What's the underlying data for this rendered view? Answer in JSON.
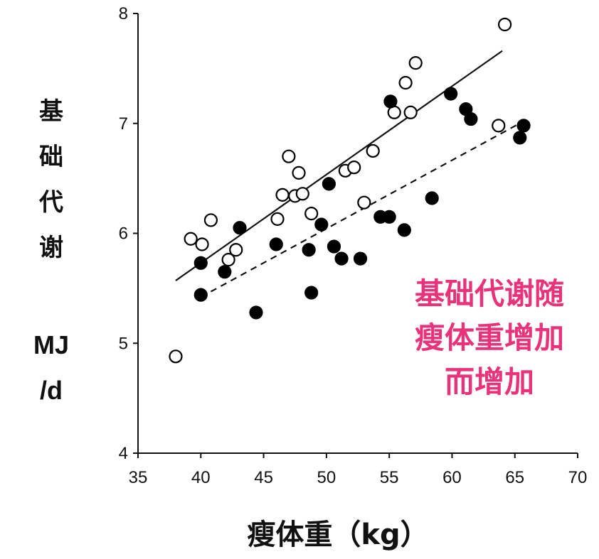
{
  "chart_data": {
    "type": "scatter",
    "title": "",
    "xlabel": "瘦体重（kg）",
    "ylabel_chars": [
      "基",
      "础",
      "代",
      "谢"
    ],
    "yunit_lines": [
      "MJ",
      "/d"
    ],
    "xlim": [
      35,
      70
    ],
    "ylim": [
      4,
      8
    ],
    "x_ticks": [
      "35",
      "40",
      "45",
      "50",
      "55",
      "60",
      "65",
      "70"
    ],
    "y_ticks": [
      "4",
      "5",
      "6",
      "7",
      "8"
    ],
    "grid": false,
    "annotation_lines": [
      "基础代谢随",
      "瘦体重增加",
      "而增加"
    ],
    "annotation_color": "#e8327a",
    "series": [
      {
        "marker": "open-circle",
        "points": [
          [
            38.0,
            4.88
          ],
          [
            39.2,
            5.95
          ],
          [
            40.1,
            5.9
          ],
          [
            40.8,
            6.12
          ],
          [
            42.2,
            5.76
          ],
          [
            42.8,
            5.85
          ],
          [
            46.1,
            6.13
          ],
          [
            46.5,
            6.35
          ],
          [
            47.0,
            6.7
          ],
          [
            47.5,
            6.34
          ],
          [
            47.8,
            6.55
          ],
          [
            48.1,
            6.36
          ],
          [
            48.8,
            6.18
          ],
          [
            51.5,
            6.57
          ],
          [
            52.2,
            6.6
          ],
          [
            53.0,
            6.28
          ],
          [
            53.7,
            6.75
          ],
          [
            55.4,
            7.1
          ],
          [
            56.3,
            7.37
          ],
          [
            56.7,
            7.1
          ],
          [
            57.1,
            7.55
          ],
          [
            63.7,
            6.98
          ],
          [
            64.2,
            7.9
          ]
        ],
        "fit_line": [
          [
            38.0,
            5.57
          ],
          [
            64.0,
            7.66
          ]
        ]
      },
      {
        "marker": "filled-circle",
        "points": [
          [
            40.0,
            5.73
          ],
          [
            40.0,
            5.44
          ],
          [
            41.9,
            5.65
          ],
          [
            43.1,
            6.05
          ],
          [
            44.4,
            5.28
          ],
          [
            46.0,
            5.9
          ],
          [
            48.6,
            5.85
          ],
          [
            48.8,
            5.46
          ],
          [
            49.6,
            6.08
          ],
          [
            50.2,
            6.45
          ],
          [
            50.6,
            5.88
          ],
          [
            51.2,
            5.77
          ],
          [
            52.7,
            5.77
          ],
          [
            54.3,
            6.15
          ],
          [
            55.0,
            6.15
          ],
          [
            55.1,
            7.2
          ],
          [
            56.2,
            6.03
          ],
          [
            58.4,
            6.32
          ],
          [
            59.9,
            7.27
          ],
          [
            61.1,
            7.13
          ],
          [
            61.5,
            7.04
          ],
          [
            65.4,
            6.87
          ],
          [
            65.7,
            6.98
          ]
        ],
        "fit_line": [
          [
            40.0,
            5.42
          ],
          [
            65.7,
            7.02
          ]
        ]
      }
    ]
  }
}
